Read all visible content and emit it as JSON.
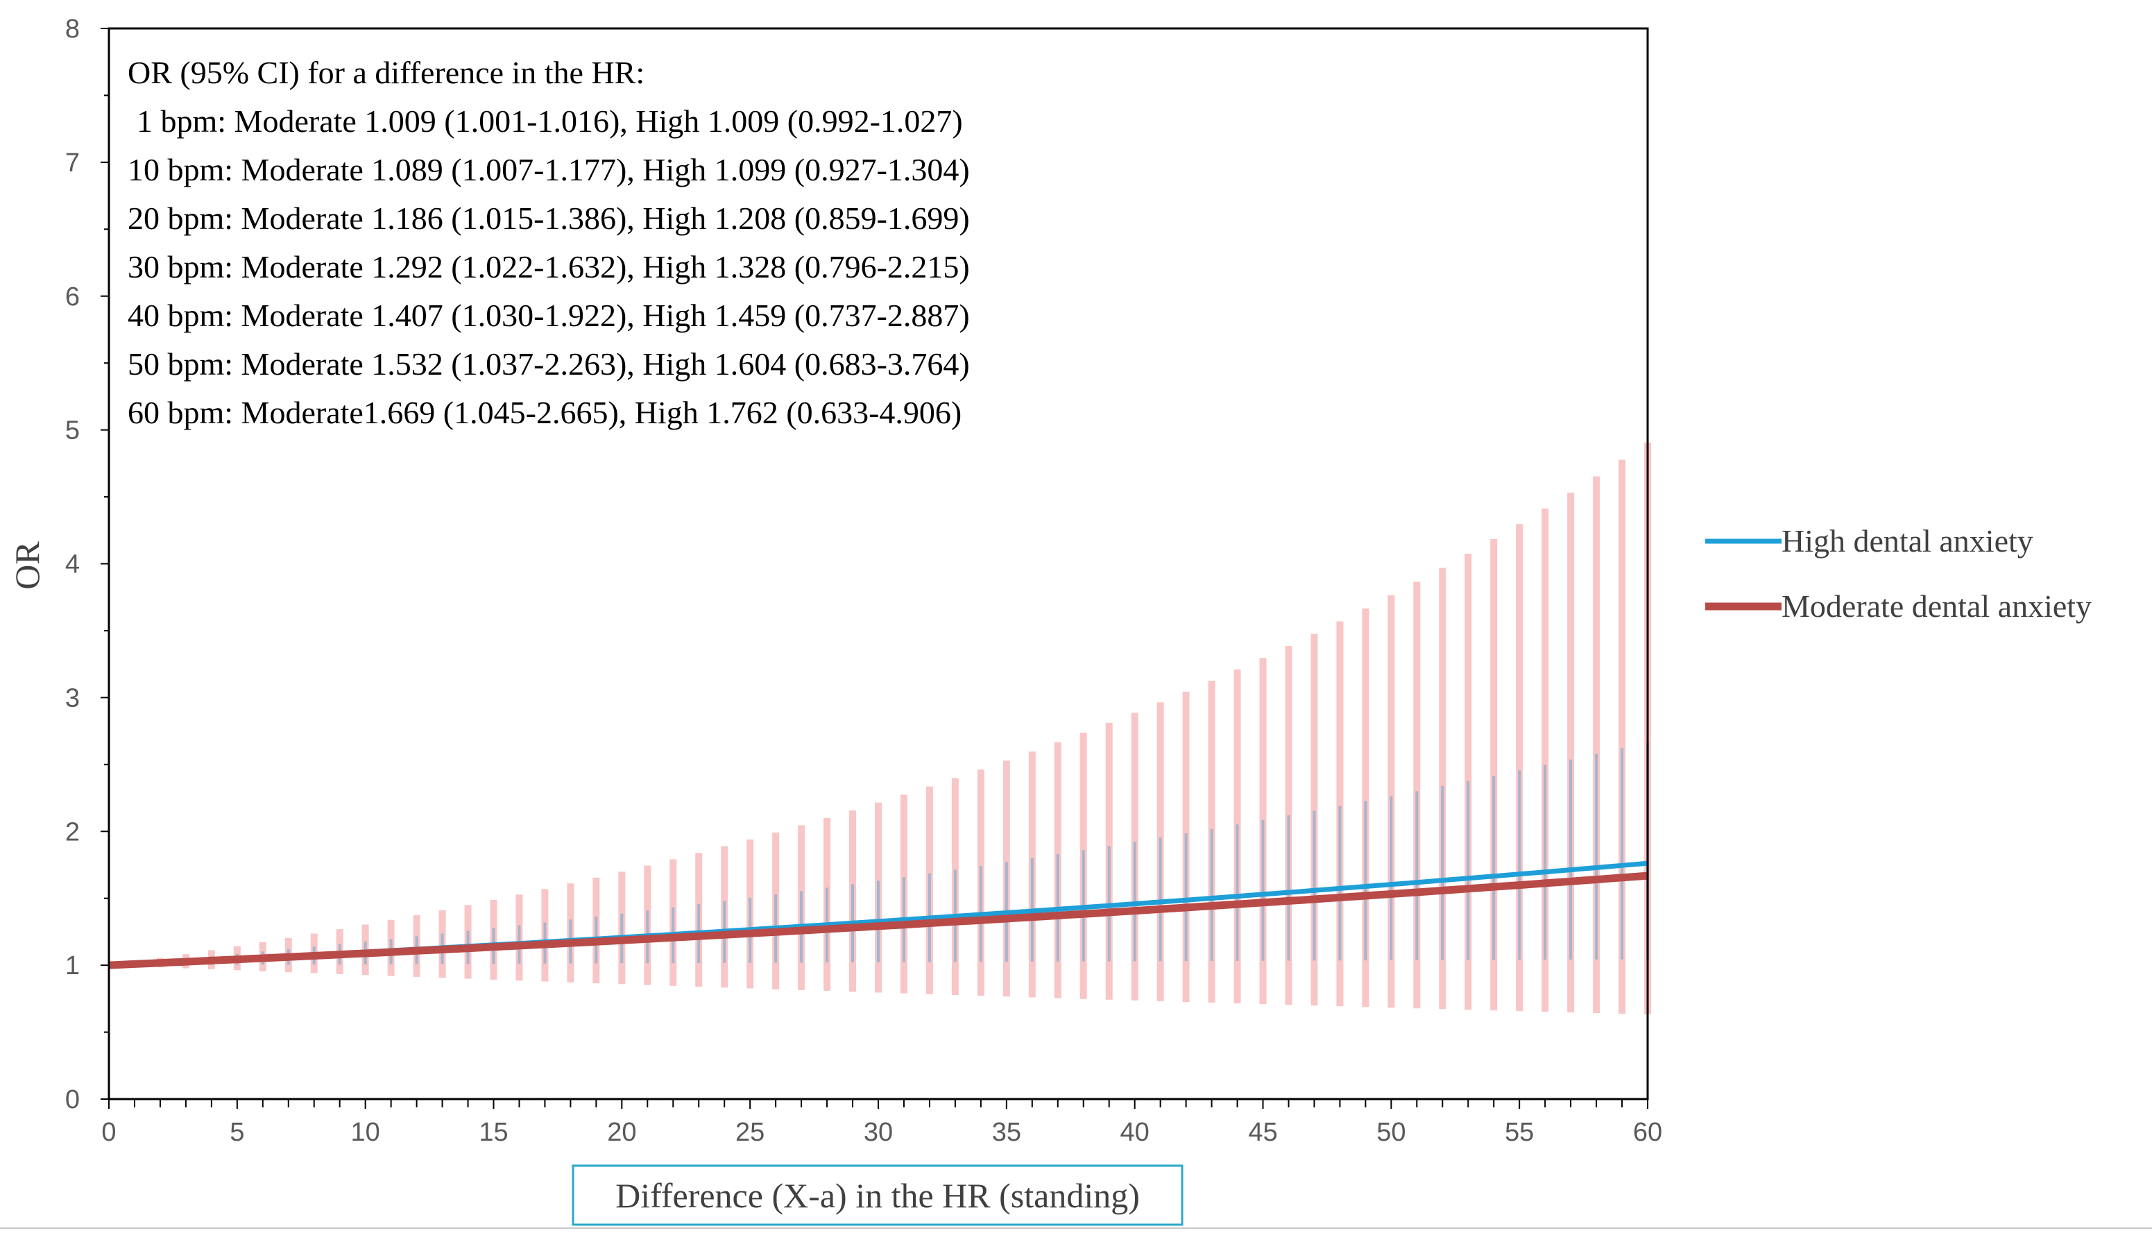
{
  "chart_data": {
    "type": "line",
    "xlabel": "Difference (X-a) in the HR (standing)",
    "ylabel": "OR",
    "xlim": [
      0,
      60
    ],
    "ylim": [
      0,
      8
    ],
    "x_ticks": [
      0,
      5,
      10,
      15,
      20,
      25,
      30,
      35,
      40,
      45,
      50,
      55,
      60
    ],
    "y_ticks": [
      0,
      1,
      2,
      3,
      4,
      5,
      6,
      7,
      8
    ],
    "legend_position": "right",
    "annotation_lines": [
      "OR (95% CI) for a difference in the HR:",
      " 1 bpm: Moderate 1.009 (1.001-1.016), High 1.009 (0.992-1.027)",
      "10 bpm: Moderate 1.089 (1.007-1.177), High 1.099 (0.927-1.304)",
      "20 bpm: Moderate 1.186 (1.015-1.386), High 1.208 (0.859-1.699)",
      "30 bpm: Moderate 1.292 (1.022-1.632), High 1.328 (0.796-2.215)",
      "40 bpm: Moderate 1.407 (1.030-1.922), High 1.459 (0.737-2.887)",
      "50 bpm: Moderate 1.532 (1.037-2.263), High 1.604 (0.683-3.764)",
      "60 bpm: Moderate1.669 (1.045-2.665), High 1.762 (0.633-4.906)"
    ],
    "series": [
      {
        "name": "High dental anxiety",
        "color": "#1E9FD8",
        "ci_color": "#F8C6C6",
        "anchors": {
          "x": [
            0,
            1,
            10,
            20,
            30,
            40,
            50,
            60
          ],
          "or": [
            1.0,
            1.009,
            1.099,
            1.208,
            1.328,
            1.459,
            1.604,
            1.762
          ],
          "lower": [
            1.0,
            0.992,
            0.927,
            0.859,
            0.796,
            0.737,
            0.683,
            0.633
          ],
          "upper": [
            1.0,
            1.027,
            1.304,
            1.699,
            2.215,
            2.887,
            3.764,
            4.906
          ]
        }
      },
      {
        "name": "Moderate dental anxiety",
        "color": "#B84A47",
        "ci_color": "#A9B4CC",
        "anchors": {
          "x": [
            0,
            1,
            10,
            20,
            30,
            40,
            50,
            60
          ],
          "or": [
            1.0,
            1.009,
            1.089,
            1.186,
            1.292,
            1.407,
            1.532,
            1.669
          ],
          "lower": [
            1.0,
            1.001,
            1.007,
            1.015,
            1.022,
            1.03,
            1.037,
            1.045
          ],
          "upper": [
            1.0,
            1.016,
            1.177,
            1.386,
            1.632,
            1.922,
            2.263,
            2.665
          ]
        }
      }
    ]
  }
}
